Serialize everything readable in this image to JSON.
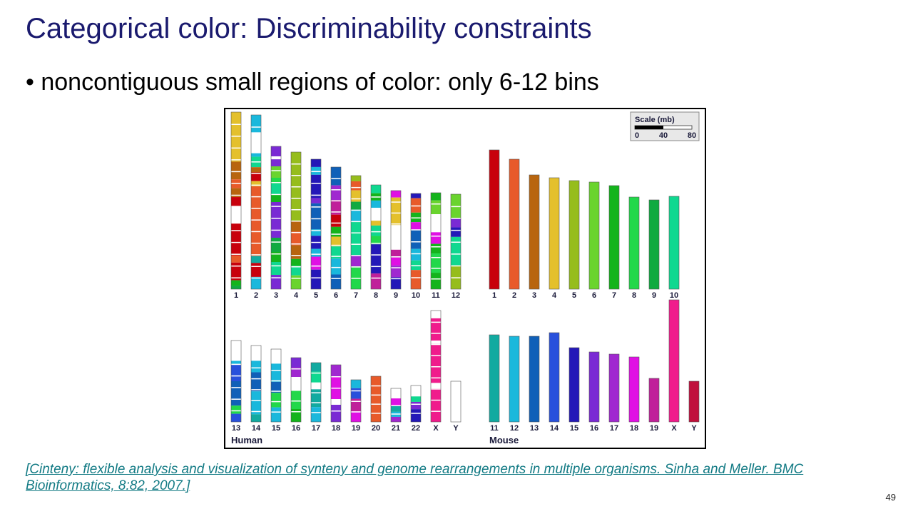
{
  "slide": {
    "title": "Categorical color: Discriminability constraints",
    "bullet": "• noncontiguous small regions of color: only 6-12 bins",
    "citation": "[Cinteny: flexible analysis and visualization of synteny and genome rearrangements in multiple organisms. Sinha and Meller. BMC Bioinformatics, 8:82, 2007.]",
    "page_number": "49"
  },
  "figure": {
    "scale": {
      "title": "Scale (mb)",
      "ticks": [
        "0",
        "40",
        "80"
      ]
    },
    "human_label": "Human",
    "mouse_label": "Mouse",
    "palette": {
      "m1": "#c8000c",
      "m2": "#e85a2a",
      "m3": "#b8650f",
      "m4": "#e4c02c",
      "m5": "#96bd1c",
      "m6": "#6ad42e",
      "m7": "#14b41c",
      "m8": "#22d84a",
      "m9": "#10aa40",
      "m10": "#10d890",
      "m11": "#12aaa0",
      "m12": "#1ab8dc",
      "m13": "#1060b8",
      "m14": "#2850dc",
      "m15": "#2418b8",
      "m16": "#7a2ad4",
      "m17": "#a028d0",
      "m18": "#e010e4",
      "m19": "#c0209a",
      "mX": "#f01c8c",
      "mY": "#c0103c",
      "white": "#ffffff"
    },
    "human_chromosomes": [
      {
        "label": "1",
        "length": 248,
        "segments": [
          [
            "m4",
            0.28
          ],
          [
            "m3",
            0.1
          ],
          [
            "m2",
            0.05
          ],
          [
            "m3",
            0.05
          ],
          [
            "m1",
            0.05
          ],
          [
            "white",
            0.1
          ],
          [
            "m1",
            0.18
          ],
          [
            "m2",
            0.04
          ],
          [
            "m1",
            0.1
          ],
          [
            "m7",
            0.03
          ],
          [
            "m9",
            0.02
          ]
        ]
      },
      {
        "label": "2",
        "length": 244,
        "segments": [
          [
            "m12",
            0.1
          ],
          [
            "white",
            0.12
          ],
          [
            "m12",
            0.02
          ],
          [
            "m10",
            0.06
          ],
          [
            "m3",
            0.03
          ],
          [
            "m1",
            0.05
          ],
          [
            "m4",
            0.03
          ],
          [
            "m2",
            0.4
          ],
          [
            "m11",
            0.04
          ],
          [
            "m1",
            0.08
          ],
          [
            "m12",
            0.07
          ]
        ]
      },
      {
        "label": "3",
        "length": 200,
        "segments": [
          [
            "m16",
            0.07
          ],
          [
            "white",
            0.02
          ],
          [
            "m16",
            0.05
          ],
          [
            "m6",
            0.08
          ],
          [
            "m8",
            0.04
          ],
          [
            "m10",
            0.08
          ],
          [
            "m7",
            0.05
          ],
          [
            "m16",
            0.25
          ],
          [
            "m9",
            0.1
          ],
          [
            "m7",
            0.07
          ],
          [
            "m10",
            0.09
          ],
          [
            "m16",
            0.1
          ]
        ]
      },
      {
        "label": "4",
        "length": 192,
        "segments": [
          [
            "m5",
            0.5
          ],
          [
            "m3",
            0.08
          ],
          [
            "m2",
            0.1
          ],
          [
            "m3",
            0.1
          ],
          [
            "m7",
            0.05
          ],
          [
            "m10",
            0.07
          ],
          [
            "m6",
            0.1
          ]
        ]
      },
      {
        "label": "5",
        "length": 182,
        "segments": [
          [
            "m15",
            0.06
          ],
          [
            "m12",
            0.06
          ],
          [
            "m15",
            0.18
          ],
          [
            "m16",
            0.04
          ],
          [
            "m13",
            0.2
          ],
          [
            "m12",
            0.05
          ],
          [
            "m15",
            0.1
          ],
          [
            "m12",
            0.06
          ],
          [
            "m18",
            0.1
          ],
          [
            "m15",
            0.15
          ]
        ]
      },
      {
        "label": "6",
        "length": 171,
        "segments": [
          [
            "m13",
            0.15
          ],
          [
            "m17",
            0.12
          ],
          [
            "m19",
            0.12
          ],
          [
            "m1",
            0.1
          ],
          [
            "m7",
            0.08
          ],
          [
            "m4",
            0.08
          ],
          [
            "m10",
            0.1
          ],
          [
            "m12",
            0.13
          ],
          [
            "m13",
            0.12
          ]
        ]
      },
      {
        "label": "7",
        "length": 159,
        "segments": [
          [
            "m5",
            0.05
          ],
          [
            "m2",
            0.08
          ],
          [
            "m4",
            0.1
          ],
          [
            "m9",
            0.07
          ],
          [
            "m12",
            0.1
          ],
          [
            "m10",
            0.3
          ],
          [
            "m17",
            0.1
          ],
          [
            "m8",
            0.2
          ]
        ]
      },
      {
        "label": "8",
        "length": 146,
        "segments": [
          [
            "m10",
            0.08
          ],
          [
            "m7",
            0.07
          ],
          [
            "m12",
            0.07
          ],
          [
            "white",
            0.12
          ],
          [
            "m4",
            0.05
          ],
          [
            "m10",
            0.1
          ],
          [
            "m8",
            0.08
          ],
          [
            "m15",
            0.28
          ],
          [
            "m19",
            0.15
          ]
        ]
      },
      {
        "label": "9",
        "length": 138,
        "segments": [
          [
            "m18",
            0.07
          ],
          [
            "m4",
            0.28
          ],
          [
            "white",
            0.25
          ],
          [
            "m19",
            0.08
          ],
          [
            "m18",
            0.08
          ],
          [
            "m17",
            0.12
          ],
          [
            "m15",
            0.12
          ]
        ]
      },
      {
        "label": "10",
        "length": 134,
        "segments": [
          [
            "m15",
            0.05
          ],
          [
            "m2",
            0.15
          ],
          [
            "m7",
            0.1
          ],
          [
            "m18",
            0.08
          ],
          [
            "m13",
            0.2
          ],
          [
            "m12",
            0.12
          ],
          [
            "m10",
            0.1
          ],
          [
            "m2",
            0.2
          ]
        ]
      },
      {
        "label": "11",
        "length": 135,
        "segments": [
          [
            "m7",
            0.08
          ],
          [
            "m6",
            0.15
          ],
          [
            "white",
            0.18
          ],
          [
            "m18",
            0.12
          ],
          [
            "m7",
            0.1
          ],
          [
            "m8",
            0.2
          ],
          [
            "m7",
            0.17
          ]
        ]
      },
      {
        "label": "12",
        "length": 133,
        "segments": [
          [
            "m6",
            0.25
          ],
          [
            "m16",
            0.1
          ],
          [
            "m15",
            0.1
          ],
          [
            "m10",
            0.3
          ],
          [
            "m5",
            0.25
          ]
        ]
      },
      {
        "label": "13",
        "length": 114,
        "segments": [
          [
            "white",
            0.25
          ],
          [
            "m12",
            0.05
          ],
          [
            "m14",
            0.2
          ],
          [
            "m13",
            0.3
          ],
          [
            "m8",
            0.1
          ],
          [
            "m14",
            0.1
          ]
        ]
      },
      {
        "label": "14",
        "length": 107,
        "segments": [
          [
            "white",
            0.2
          ],
          [
            "m12",
            0.15
          ],
          [
            "m13",
            0.25
          ],
          [
            "m12",
            0.3
          ],
          [
            "m11",
            0.1
          ]
        ]
      },
      {
        "label": "15",
        "length": 102,
        "segments": [
          [
            "white",
            0.2
          ],
          [
            "m12",
            0.25
          ],
          [
            "m13",
            0.15
          ],
          [
            "m8",
            0.2
          ],
          [
            "m12",
            0.2
          ]
        ]
      },
      {
        "label": "16",
        "length": 90,
        "segments": [
          [
            "m16",
            0.15
          ],
          [
            "m17",
            0.15
          ],
          [
            "white",
            0.2
          ],
          [
            "m8",
            0.3
          ],
          [
            "m7",
            0.2
          ]
        ]
      },
      {
        "label": "17",
        "length": 83,
        "segments": [
          [
            "m11",
            0.15
          ],
          [
            "m10",
            0.2
          ],
          [
            "white",
            0.1
          ],
          [
            "m11",
            0.3
          ],
          [
            "m12",
            0.25
          ]
        ]
      },
      {
        "label": "18",
        "length": 80,
        "segments": [
          [
            "m17",
            0.2
          ],
          [
            "m18",
            0.4
          ],
          [
            "white",
            0.1
          ],
          [
            "m16",
            0.3
          ]
        ]
      },
      {
        "label": "19",
        "length": 59,
        "segments": [
          [
            "m12",
            0.2
          ],
          [
            "m14",
            0.25
          ],
          [
            "m19",
            0.3
          ],
          [
            "m18",
            0.25
          ]
        ]
      },
      {
        "label": "20",
        "length": 64,
        "segments": [
          [
            "m2",
            1.0
          ]
        ]
      },
      {
        "label": "21",
        "length": 47,
        "segments": [
          [
            "white",
            0.3
          ],
          [
            "m18",
            0.2
          ],
          [
            "m11",
            0.2
          ],
          [
            "m12",
            0.15
          ],
          [
            "m17",
            0.15
          ]
        ]
      },
      {
        "label": "22",
        "length": 51,
        "segments": [
          [
            "white",
            0.3
          ],
          [
            "m10",
            0.15
          ],
          [
            "m16",
            0.2
          ],
          [
            "m15",
            0.35
          ]
        ]
      },
      {
        "label": "X",
        "length": 156,
        "segments": [
          [
            "white",
            0.07
          ],
          [
            "mX",
            0.2
          ],
          [
            "white",
            0.03
          ],
          [
            "mX",
            0.35
          ],
          [
            "white",
            0.05
          ],
          [
            "mX",
            0.3
          ]
        ]
      },
      {
        "label": "Y",
        "length": 57,
        "segments": [
          [
            "white",
            1.0
          ]
        ]
      }
    ],
    "mouse_chromosomes": [
      {
        "label": "1",
        "length": 195,
        "color": "m1"
      },
      {
        "label": "2",
        "length": 182,
        "color": "m2"
      },
      {
        "label": "3",
        "length": 160,
        "color": "m3"
      },
      {
        "label": "4",
        "length": 156,
        "color": "m4"
      },
      {
        "label": "5",
        "length": 152,
        "color": "m5"
      },
      {
        "label": "6",
        "length": 150,
        "color": "m6"
      },
      {
        "label": "7",
        "length": 145,
        "color": "m7"
      },
      {
        "label": "8",
        "length": 129,
        "color": "m8"
      },
      {
        "label": "9",
        "length": 125,
        "color": "m9"
      },
      {
        "label": "10",
        "length": 130,
        "color": "m10"
      },
      {
        "label": "11",
        "length": 122,
        "color": "m11"
      },
      {
        "label": "12",
        "length": 120,
        "color": "m12"
      },
      {
        "label": "13",
        "length": 120,
        "color": "m13"
      },
      {
        "label": "14",
        "length": 125,
        "color": "m14"
      },
      {
        "label": "15",
        "length": 104,
        "color": "m15"
      },
      {
        "label": "16",
        "length": 98,
        "color": "m16"
      },
      {
        "label": "17",
        "length": 95,
        "color": "m17"
      },
      {
        "label": "18",
        "length": 91,
        "color": "m18"
      },
      {
        "label": "19",
        "length": 61,
        "color": "m19"
      },
      {
        "label": "X",
        "length": 171,
        "color": "mX"
      },
      {
        "label": "Y",
        "length": 57,
        "color": "mY"
      }
    ]
  }
}
